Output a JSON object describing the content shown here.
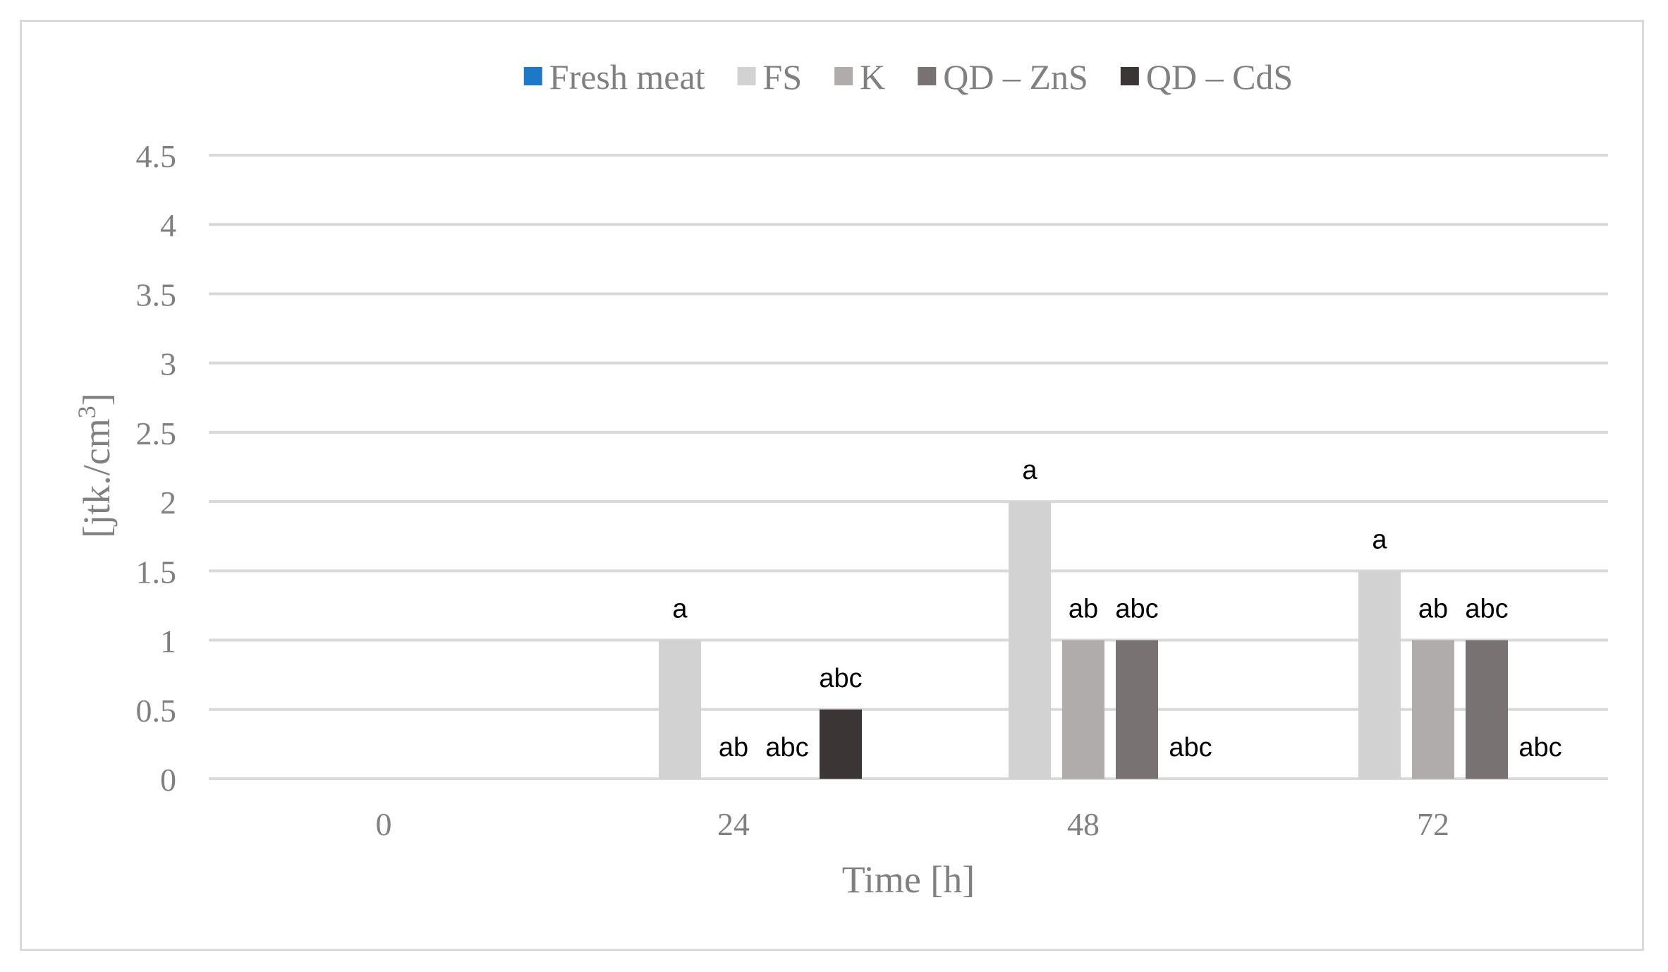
{
  "chart_data": {
    "type": "bar",
    "categories": [
      "0",
      "24",
      "48",
      "72"
    ],
    "series": [
      {
        "name": "Fresh meat",
        "color": "#1f77c8",
        "values": [
          0,
          0,
          0,
          0
        ],
        "labels": [
          "",
          "",
          "",
          ""
        ]
      },
      {
        "name": "FS",
        "color": "#d2d2d2",
        "values": [
          0,
          1,
          2,
          1.5
        ],
        "labels": [
          "",
          "a",
          "a",
          "a"
        ]
      },
      {
        "name": "K",
        "color": "#b0acac",
        "values": [
          0,
          0,
          1,
          1
        ],
        "labels": [
          "",
          "ab",
          "ab",
          "ab"
        ]
      },
      {
        "name": "QD – ZnS",
        "color": "#787272",
        "values": [
          0,
          0,
          1,
          1
        ],
        "labels": [
          "",
          "abc",
          "abc",
          "abc"
        ]
      },
      {
        "name": "QD – CdS",
        "color": "#3b3536",
        "values": [
          0,
          0.5,
          0,
          0
        ],
        "labels": [
          "",
          "abc",
          "abc",
          "abc"
        ]
      }
    ],
    "xlabel": "Time [h]",
    "ylabel": "[jtk./cm",
    "ylabel_sup": "3",
    "ylabel_end": "]",
    "ylim": [
      0,
      4.5
    ],
    "yticks": [
      "0",
      "0.5",
      "1",
      "1.5",
      "2",
      "2.5",
      "3",
      "3.5",
      "4",
      "4.5"
    ],
    "grid": true,
    "legend": "top"
  }
}
